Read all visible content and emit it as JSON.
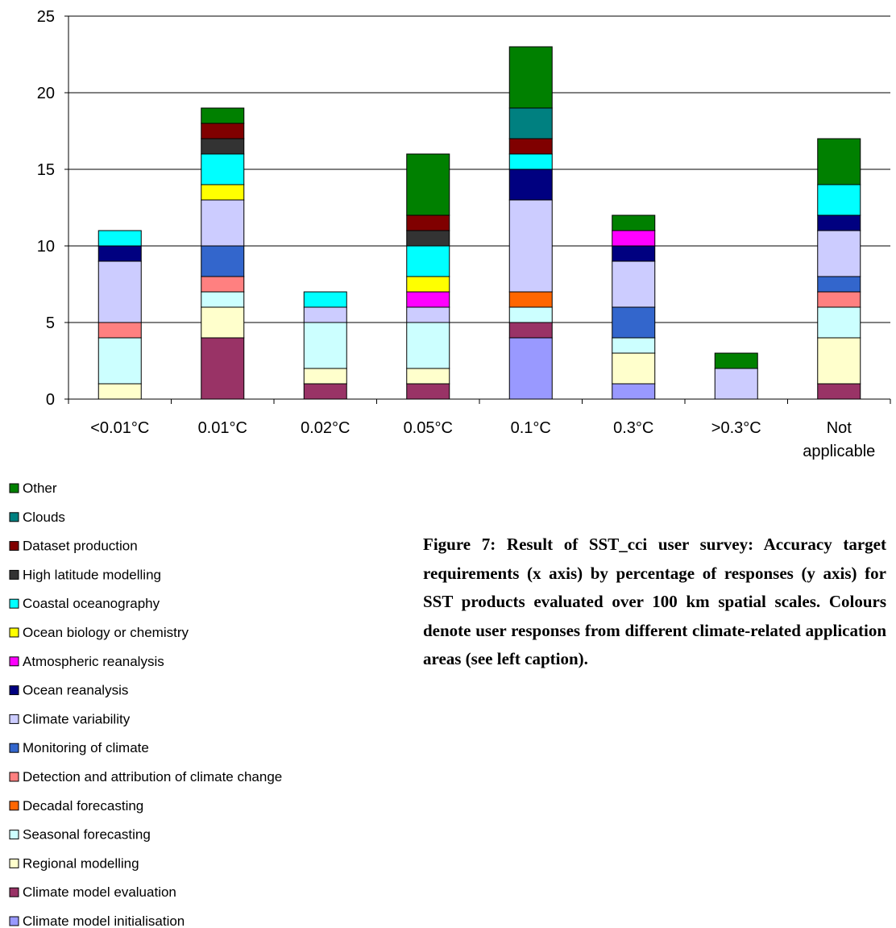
{
  "chart_data": {
    "type": "stacked_bar",
    "caption": "Figure 7: Result of SST_cci user survey: Accuracy target requirements (x axis) by percentage of responses (y axis) for SST products evaluated over 100 km spatial scales. Colours denote user responses from different climate-related application areas (see left caption).",
    "categories": [
      "<0.01°C",
      "0.01°C",
      "0.02°C",
      "0.05°C",
      "0.1°C",
      "0.3°C",
      ">0.3°C",
      "Not applicable"
    ],
    "ylim": [
      0,
      25
    ],
    "yticks": [
      0,
      5,
      10,
      15,
      20,
      25
    ],
    "grid": true,
    "series": [
      {
        "name": "Climate model initialisation",
        "color": "#9999ff",
        "values": [
          0,
          0,
          0,
          0,
          4,
          1,
          0,
          0
        ]
      },
      {
        "name": "Climate model evaluation",
        "color": "#993366",
        "values": [
          0,
          4,
          1,
          1,
          1,
          0,
          0,
          1
        ]
      },
      {
        "name": "Regional modelling",
        "color": "#ffffcc",
        "values": [
          1,
          2,
          1,
          1,
          0,
          2,
          0,
          3
        ]
      },
      {
        "name": "Seasonal forecasting",
        "color": "#ccffff",
        "values": [
          3,
          1,
          3,
          3,
          1,
          1,
          0,
          2
        ]
      },
      {
        "name": "Decadal forecasting",
        "color": "#ff6600",
        "values": [
          0,
          0,
          0,
          0,
          1,
          0,
          0,
          0
        ]
      },
      {
        "name": "Detection and attribution of climate change",
        "color": "#ff8080",
        "values": [
          1,
          1,
          0,
          0,
          0,
          0,
          0,
          1
        ]
      },
      {
        "name": "Monitoring of climate",
        "color": "#3366cc",
        "values": [
          0,
          2,
          0,
          0,
          0,
          2,
          0,
          1
        ]
      },
      {
        "name": "Climate variability",
        "color": "#ccccff",
        "values": [
          4,
          3,
          1,
          1,
          6,
          3,
          2,
          3
        ]
      },
      {
        "name": "Ocean reanalysis",
        "color": "#000080",
        "values": [
          1,
          0,
          0,
          0,
          2,
          1,
          0,
          1
        ]
      },
      {
        "name": "Atmospheric reanalysis",
        "color": "#ff00ff",
        "values": [
          0,
          0,
          0,
          1,
          0,
          1,
          0,
          0
        ]
      },
      {
        "name": "Ocean biology or chemistry",
        "color": "#ffff00",
        "values": [
          0,
          1,
          0,
          1,
          0,
          0,
          0,
          0
        ]
      },
      {
        "name": "Coastal oceanography",
        "color": "#00ffff",
        "values": [
          1,
          2,
          1,
          2,
          1,
          0,
          0,
          2
        ]
      },
      {
        "name": "High latitude modelling",
        "color": "#333333",
        "values": [
          0,
          1,
          0,
          1,
          0,
          0,
          0,
          0
        ]
      },
      {
        "name": "Dataset production",
        "color": "#800000",
        "values": [
          0,
          1,
          0,
          1,
          1,
          0,
          0,
          0
        ]
      },
      {
        "name": "Clouds",
        "color": "#008080",
        "values": [
          0,
          0,
          0,
          0,
          2,
          0,
          0,
          0
        ]
      },
      {
        "name": "Other",
        "color": "#008000",
        "values": [
          0,
          1,
          0,
          4,
          4,
          1,
          1,
          3
        ]
      }
    ]
  }
}
